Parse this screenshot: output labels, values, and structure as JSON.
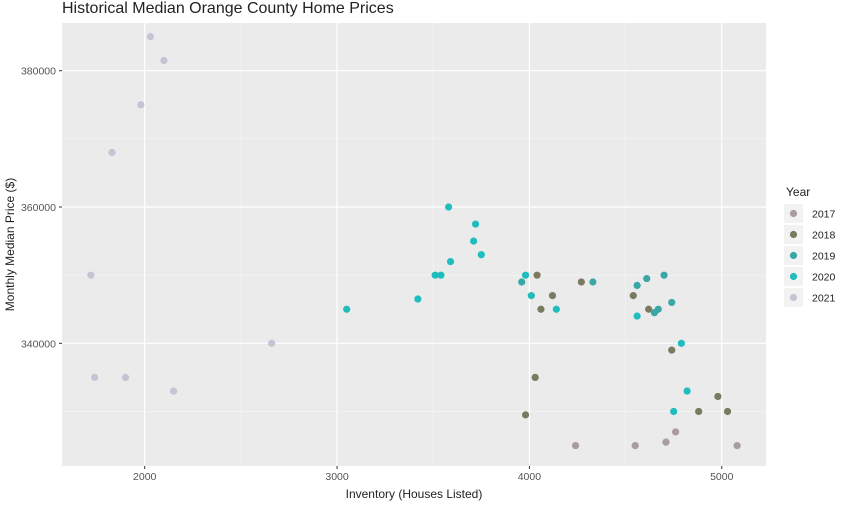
{
  "chart_data": {
    "type": "scatter",
    "title": "Historical Median Orange County Home Prices",
    "xlabel": "Inventory (Houses Listed)",
    "ylabel": "Monthly Median Price ($)",
    "xlim": [
      1570,
      5230
    ],
    "ylim": [
      322000,
      387000
    ],
    "x_ticks": [
      2000,
      3000,
      4000,
      5000
    ],
    "y_ticks": [
      340000,
      360000,
      380000
    ],
    "grid": true,
    "background": "#ebebeb",
    "legend": {
      "title": "Year",
      "placement": "right",
      "entries": [
        "2017",
        "2018",
        "2019",
        "2020",
        "2021"
      ]
    },
    "series": [
      {
        "name": "2017",
        "color": "#a89c9c",
        "points": [
          [
            4240,
            325000
          ],
          [
            4550,
            325000
          ],
          [
            4710,
            325500
          ],
          [
            4760,
            327000
          ],
          [
            5080,
            325000
          ]
        ]
      },
      {
        "name": "2018",
        "color": "#7a7a60",
        "points": [
          [
            3980,
            329500
          ],
          [
            4030,
            335000
          ],
          [
            4040,
            350000
          ],
          [
            4060,
            345000
          ],
          [
            4120,
            347000
          ],
          [
            4270,
            349000
          ],
          [
            4540,
            347000
          ],
          [
            4620,
            345000
          ],
          [
            4740,
            339000
          ],
          [
            4880,
            330000
          ],
          [
            4980,
            332200
          ],
          [
            5030,
            330000
          ]
        ]
      },
      {
        "name": "2019",
        "color": "#3aa7a7",
        "points": [
          [
            3960,
            349000
          ],
          [
            4330,
            349000
          ],
          [
            4560,
            348500
          ],
          [
            4610,
            349500
          ],
          [
            4650,
            344500
          ],
          [
            4700,
            350000
          ],
          [
            4740,
            346000
          ],
          [
            4670,
            345000
          ]
        ]
      },
      {
        "name": "2020",
        "color": "#1fbdbd",
        "points": [
          [
            3050,
            345000
          ],
          [
            3420,
            346500
          ],
          [
            3510,
            350000
          ],
          [
            3540,
            350000
          ],
          [
            3580,
            360000
          ],
          [
            3590,
            352000
          ],
          [
            3710,
            355000
          ],
          [
            3720,
            357500
          ],
          [
            3750,
            353000
          ],
          [
            3980,
            350000
          ],
          [
            4010,
            347000
          ],
          [
            4140,
            345000
          ],
          [
            4560,
            344000
          ],
          [
            4750,
            330000
          ],
          [
            4790,
            340000
          ],
          [
            4820,
            333000
          ]
        ]
      },
      {
        "name": "2021",
        "color": "#c5c3d4",
        "points": [
          [
            1720,
            350000
          ],
          [
            1740,
            335000
          ],
          [
            1830,
            368000
          ],
          [
            1900,
            335000
          ],
          [
            1980,
            375000
          ],
          [
            2030,
            385000
          ],
          [
            2100,
            381500
          ],
          [
            2150,
            333000
          ],
          [
            2660,
            340000
          ]
        ]
      }
    ]
  }
}
